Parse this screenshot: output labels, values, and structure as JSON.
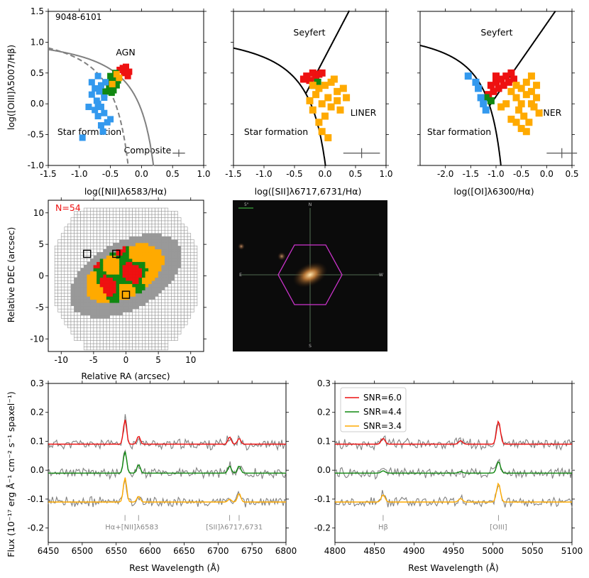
{
  "colors": {
    "red": "#ee1111",
    "green": "#118811",
    "orange": "#ffaa00",
    "blue": "#3399ee",
    "gray": "#808080",
    "magenta": "#cc33cc",
    "photo_bg": "#0b0b0b"
  },
  "bpt": {
    "galaxy_id": "9048-6101",
    "panels": [
      {
        "key": "nii",
        "xlabel": "log([NII]λ6583/Hα)",
        "ylabel": "log([OIII]λ5007/Hβ)",
        "xlim": [
          -1.5,
          1.0
        ],
        "ylim": [
          -1.0,
          1.5
        ],
        "xticks": [
          "-1.5",
          "-1.0",
          "-0.5",
          "0.0",
          "0.5",
          "1.0"
        ],
        "yticks": [
          "-1.0",
          "-0.5",
          "0.0",
          "0.5",
          "1.0",
          "1.5"
        ],
        "region_labels": [
          "AGN",
          "Star formation",
          "Composite"
        ],
        "error_bar": {
          "x": 0.6,
          "y": -0.8,
          "dx": 0.1,
          "dy": 0.06
        }
      },
      {
        "key": "sii",
        "xlabel": "log([SII]λ6717,6731/Hα)",
        "xlim": [
          -1.5,
          1.0
        ],
        "ylim": [
          -1.0,
          1.5
        ],
        "xticks": [
          "-1.5",
          "-1.0",
          "-0.5",
          "0.0",
          "0.5",
          "1.0"
        ],
        "region_labels": [
          "Seyfert",
          "LINER",
          "Star formation"
        ],
        "error_bar": {
          "x": 0.6,
          "y": -0.8,
          "dx": 0.3,
          "dy": 0.08
        }
      },
      {
        "key": "oi",
        "xlabel": "log([OI]λ6300/Hα)",
        "xlim": [
          -2.5,
          0.5
        ],
        "ylim": [
          -1.0,
          1.5
        ],
        "xticks": [
          "-2.0",
          "-1.5",
          "-1.0",
          "-0.5",
          "0.0",
          "0.5"
        ],
        "region_labels": [
          "Seyfert",
          "LINER",
          "Star formation"
        ],
        "error_bar": {
          "x": 0.3,
          "y": -0.8,
          "dx": 0.3,
          "dy": 0.08
        }
      }
    ]
  },
  "map": {
    "count_label": "N=54",
    "xlabel": "Relative RA (arcsec)",
    "ylabel": "Relative DEC (arcsec)",
    "xticks": [
      "-10",
      "-5",
      "0",
      "5",
      "10"
    ],
    "yticks": [
      "-10",
      "-5",
      "0",
      "5",
      "10"
    ],
    "xlim": [
      -12,
      12
    ],
    "ylim": [
      -12,
      12
    ],
    "marked_spaxels": [
      [
        -6,
        3.5
      ],
      [
        -1.5,
        3.5
      ],
      [
        0,
        -3
      ]
    ]
  },
  "image": {
    "scale_label": "5\"",
    "compass": [
      "N",
      "E",
      "W",
      "S"
    ]
  },
  "spectra": {
    "ylabel": "Flux (10⁻¹⁷ erg Å⁻¹ cm⁻² s⁻¹ spaxel⁻¹)",
    "xlabel": "Rest Wavelength (Å)",
    "ylim": [
      -0.25,
      0.3
    ],
    "yticks": [
      "-0.2",
      "-0.1",
      "0.0",
      "0.1",
      "0.2",
      "0.3"
    ],
    "legend": [
      "SNR=6.0",
      "SNR=4.4",
      "SNR=3.4"
    ],
    "offsets": [
      0.09,
      -0.01,
      -0.11
    ],
    "left": {
      "xlim": [
        6450,
        6800
      ],
      "xticks": [
        "6450",
        "6500",
        "6550",
        "6600",
        "6650",
        "6700",
        "6750",
        "6800"
      ],
      "lines": [
        {
          "label": "Hα+[NII]λ6583",
          "marks": [
            6563,
            6583
          ]
        },
        {
          "label": "[SII]λ6717,6731",
          "marks": [
            6717,
            6731
          ]
        }
      ],
      "peaks": [
        {
          "center": 6563,
          "amps": [
            0.085,
            0.075,
            0.085
          ]
        },
        {
          "center": 6583,
          "amps": [
            0.028,
            0.03,
            0.02
          ]
        },
        {
          "center": 6717,
          "amps": [
            0.025,
            0.025,
            0.01
          ]
        },
        {
          "center": 6731,
          "amps": [
            0.02,
            0.025,
            0.03
          ]
        }
      ]
    },
    "right": {
      "xlim": [
        4800,
        5100
      ],
      "xticks": [
        "4800",
        "4850",
        "4900",
        "4950",
        "5000",
        "5050",
        "5100"
      ],
      "lines": [
        {
          "label": "Hβ",
          "marks": [
            4861
          ]
        },
        {
          "label": "[OIII]",
          "marks": [
            5007
          ]
        }
      ],
      "peaks": [
        {
          "center": 4861,
          "amps": [
            0.02,
            0.008,
            0.025
          ]
        },
        {
          "center": 4959,
          "amps": [
            0.012,
            0.005,
            0.012
          ]
        },
        {
          "center": 5007,
          "amps": [
            0.08,
            0.04,
            0.065
          ]
        }
      ]
    }
  },
  "chart_data": [
    {
      "type": "scatter",
      "title": "9048-6101",
      "xlabel": "log([NII]λ6583/Hα)",
      "ylabel": "log([OIII]λ5007/Hβ)",
      "xlim": [
        -1.5,
        1.0
      ],
      "ylim": [
        -1.0,
        1.5
      ],
      "series": [
        {
          "name": "AGN",
          "color": "#ee1111",
          "points": [
            [
              -0.3,
              0.58
            ],
            [
              -0.25,
              0.6
            ],
            [
              -0.28,
              0.5
            ],
            [
              -0.22,
              0.45
            ],
            [
              -0.35,
              0.55
            ],
            [
              -0.2,
              0.52
            ]
          ]
        },
        {
          "name": "Composite",
          "color": "#118811",
          "points": [
            [
              -0.5,
              0.45
            ],
            [
              -0.45,
              0.4
            ],
            [
              -0.55,
              0.35
            ],
            [
              -0.4,
              0.3
            ],
            [
              -0.5,
              0.25
            ],
            [
              -0.42,
              0.5
            ],
            [
              -0.48,
              0.18
            ],
            [
              -0.58,
              0.2
            ],
            [
              -0.38,
              0.38
            ],
            [
              -0.52,
              0.28
            ],
            [
              -0.45,
              0.22
            ],
            [
              -0.6,
              0.15
            ]
          ]
        },
        {
          "name": "LINER",
          "color": "#ffaa00",
          "points": [
            [
              -0.4,
              0.48
            ],
            [
              -0.36,
              0.42
            ],
            [
              -0.47,
              0.32
            ]
          ]
        },
        {
          "name": "Star forming",
          "color": "#3399ee",
          "points": [
            [
              -0.7,
              0.45
            ],
            [
              -0.65,
              0.3
            ],
            [
              -0.75,
              0.25
            ],
            [
              -0.6,
              0.1
            ],
            [
              -0.7,
              0.0
            ],
            [
              -0.8,
              0.15
            ],
            [
              -0.65,
              -0.05
            ],
            [
              -0.75,
              -0.1
            ],
            [
              -0.6,
              -0.15
            ],
            [
              -0.7,
              -0.2
            ],
            [
              -0.55,
              -0.3
            ],
            [
              -0.65,
              -0.35
            ],
            [
              -0.5,
              -0.25
            ],
            [
              -0.8,
              0.35
            ],
            [
              -0.72,
              0.05
            ],
            [
              -0.58,
              0.35
            ],
            [
              -0.85,
              -0.05
            ],
            [
              -0.62,
              -0.45
            ],
            [
              -0.95,
              -0.55
            ],
            [
              -0.68,
              0.2
            ]
          ]
        }
      ]
    },
    {
      "type": "scatter",
      "xlabel": "log([SII]λ6717,6731/Hα)",
      "xlim": [
        -1.5,
        1.0
      ],
      "ylim": [
        -1.0,
        1.5
      ],
      "series": [
        {
          "name": "Seyfert",
          "color": "#ee1111",
          "points": [
            [
              -0.3,
              0.45
            ],
            [
              -0.2,
              0.5
            ],
            [
              -0.15,
              0.42
            ],
            [
              -0.25,
              0.38
            ],
            [
              -0.1,
              0.48
            ],
            [
              -0.35,
              0.4
            ],
            [
              -0.05,
              0.5
            ]
          ]
        },
        {
          "name": "Composite",
          "color": "#118811",
          "points": [
            [
              -0.12,
              0.35
            ],
            [
              -0.18,
              0.3
            ]
          ]
        },
        {
          "name": "LINER",
          "color": "#ffaa00",
          "points": [
            [
              -0.2,
              0.3
            ],
            [
              -0.1,
              0.25
            ],
            [
              0.0,
              0.3
            ],
            [
              0.1,
              0.35
            ],
            [
              -0.15,
              0.15
            ],
            [
              0.05,
              0.1
            ],
            [
              0.2,
              0.2
            ],
            [
              -0.05,
              0.0
            ],
            [
              0.1,
              -0.05
            ],
            [
              -0.2,
              -0.1
            ],
            [
              0.15,
              0.4
            ],
            [
              0.3,
              0.25
            ],
            [
              0.0,
              -0.2
            ],
            [
              -0.1,
              -0.3
            ],
            [
              -0.05,
              -0.45
            ],
            [
              0.05,
              -0.55
            ],
            [
              0.2,
              0.05
            ],
            [
              -0.25,
              0.05
            ],
            [
              0.25,
              -0.1
            ],
            [
              0.35,
              0.1
            ]
          ]
        }
      ]
    },
    {
      "type": "scatter",
      "xlabel": "log([OI]λ6300/Hα)",
      "xlim": [
        -2.5,
        0.5
      ],
      "ylim": [
        -1.0,
        1.5
      ],
      "series": [
        {
          "name": "Seyfert",
          "color": "#ee1111",
          "points": [
            [
              -1.1,
              0.3
            ],
            [
              -1.0,
              0.35
            ],
            [
              -0.9,
              0.4
            ],
            [
              -0.8,
              0.45
            ],
            [
              -1.05,
              0.2
            ],
            [
              -0.95,
              0.25
            ],
            [
              -0.85,
              0.3
            ],
            [
              -1.15,
              0.15
            ],
            [
              -0.75,
              0.35
            ],
            [
              -0.7,
              0.5
            ],
            [
              -0.65,
              0.4
            ],
            [
              -1.0,
              0.45
            ]
          ]
        },
        {
          "name": "Composite",
          "color": "#118811",
          "points": [
            [
              -1.2,
              0.1
            ],
            [
              -1.1,
              0.05
            ]
          ]
        },
        {
          "name": "LINER",
          "color": "#ffaa00",
          "points": [
            [
              -0.6,
              0.3
            ],
            [
              -0.5,
              0.25
            ],
            [
              -0.4,
              0.35
            ],
            [
              -0.3,
              0.2
            ],
            [
              -0.6,
              0.1
            ],
            [
              -0.5,
              0.0
            ],
            [
              -0.4,
              0.15
            ],
            [
              -0.3,
              0.0
            ],
            [
              -0.2,
              0.1
            ],
            [
              -0.7,
              0.2
            ],
            [
              -0.55,
              -0.1
            ],
            [
              -0.45,
              -0.2
            ],
            [
              -0.25,
              -0.05
            ],
            [
              -0.35,
              -0.3
            ],
            [
              -0.15,
              -0.15
            ],
            [
              -0.6,
              -0.3
            ],
            [
              -0.7,
              -0.25
            ],
            [
              -0.5,
              -0.4
            ],
            [
              -0.3,
              0.45
            ],
            [
              -0.8,
              0.0
            ],
            [
              -0.9,
              -0.05
            ],
            [
              -0.4,
              -0.45
            ],
            [
              -0.2,
              0.3
            ]
          ]
        },
        {
          "name": "Star forming",
          "color": "#3399ee",
          "points": [
            [
              -1.55,
              0.45
            ],
            [
              -1.4,
              0.35
            ],
            [
              -1.35,
              0.25
            ],
            [
              -1.3,
              0.1
            ],
            [
              -1.25,
              0.0
            ],
            [
              -1.2,
              -0.1
            ]
          ]
        }
      ]
    },
    {
      "type": "line",
      "xlabel": "Rest Wavelength (Å)",
      "ylabel": "Flux (10⁻¹⁷ erg Å⁻¹ cm⁻² s⁻¹ spaxel⁻¹)",
      "xlim": [
        6450,
        6800
      ],
      "ylim": [
        -0.25,
        0.3
      ],
      "series": [
        {
          "name": "SNR=6.0",
          "color": "#ee1111",
          "offset": 0.09
        },
        {
          "name": "SNR=4.4",
          "color": "#118811",
          "offset": -0.01
        },
        {
          "name": "SNR=3.4",
          "color": "#ffaa00",
          "offset": -0.11
        }
      ]
    },
    {
      "type": "line",
      "xlabel": "Rest Wavelength (Å)",
      "xlim": [
        4800,
        5100
      ],
      "ylim": [
        -0.25,
        0.3
      ],
      "series": [
        {
          "name": "SNR=6.0",
          "color": "#ee1111",
          "offset": 0.09
        },
        {
          "name": "SNR=4.4",
          "color": "#118811",
          "offset": -0.01
        },
        {
          "name": "SNR=3.4",
          "color": "#ffaa00",
          "offset": -0.11
        }
      ]
    }
  ]
}
